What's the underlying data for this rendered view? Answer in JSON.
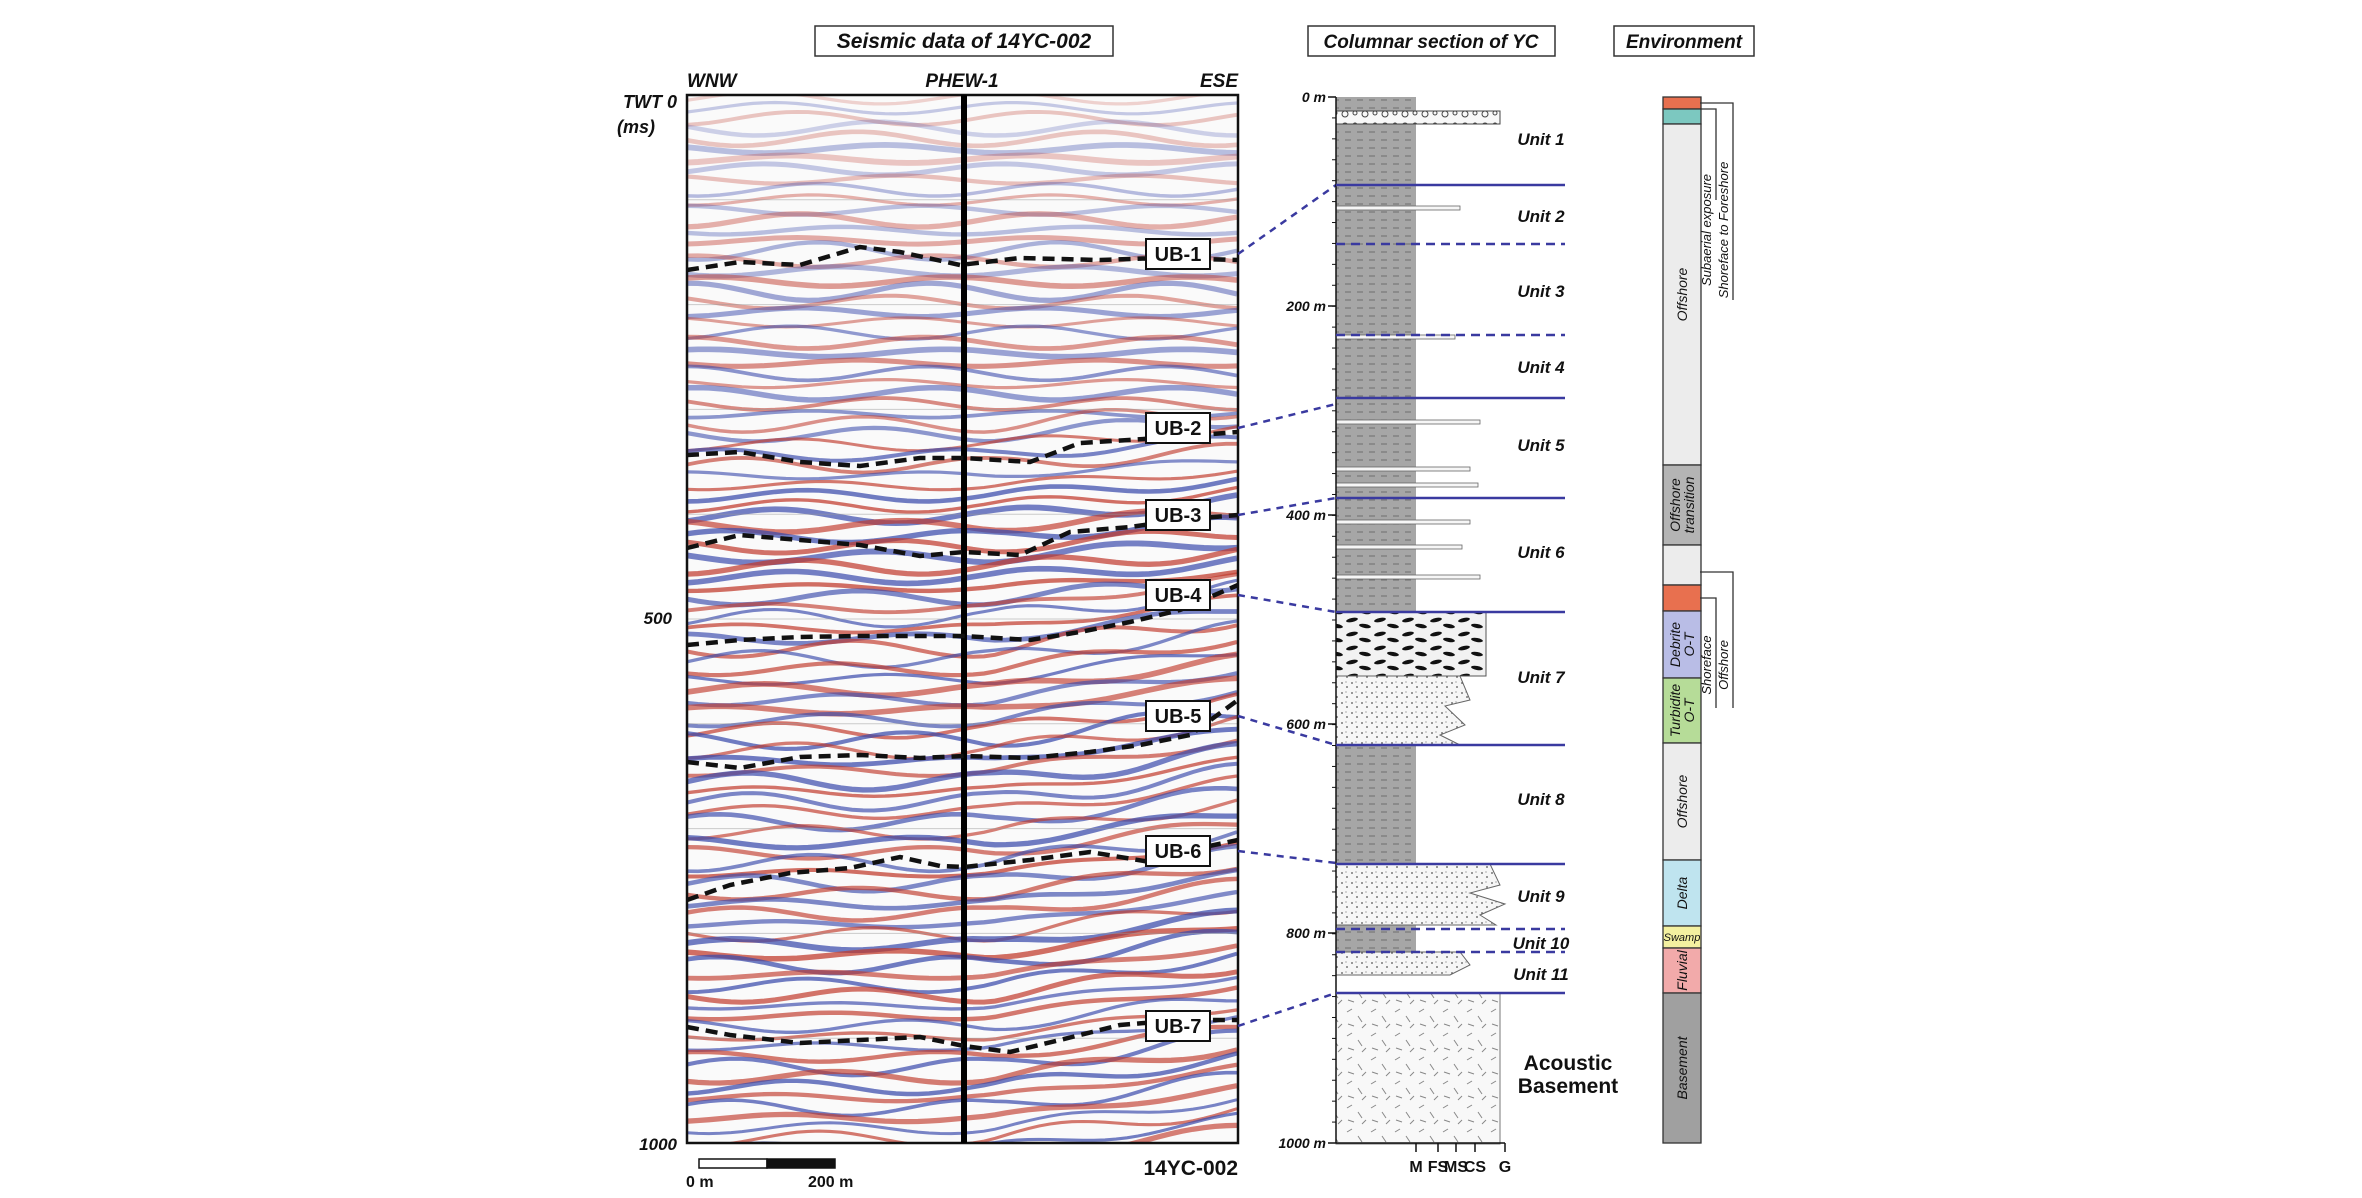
{
  "seismic": {
    "title": "Seismic data of 14YC-002",
    "label_west": "WNW",
    "label_well": "PHEW-1",
    "label_east": "ESE",
    "axis_title": "TWT 0",
    "axis_unit": "(ms)",
    "axis_tick_500": "500",
    "axis_tick_1000": "1000",
    "line_name": "14YC-002",
    "scale_start": "0 m",
    "scale_end": "200 m",
    "boundaries": [
      "UB-1",
      "UB-2",
      "UB-3",
      "UB-4",
      "UB-5",
      "UB-6",
      "UB-7"
    ]
  },
  "column": {
    "title": "Columnar section of YC",
    "depth_labels": [
      "0 m",
      "200 m",
      "400 m",
      "600 m",
      "800 m",
      "1000 m"
    ],
    "units": [
      "Unit 1",
      "Unit 2",
      "Unit 3",
      "Unit 4",
      "Unit 5",
      "Unit 6",
      "Unit 7",
      "Unit 8",
      "Unit 9",
      "Unit 10",
      "Unit 11"
    ],
    "basement_line1": "Acoustic",
    "basement_line2": "Basement",
    "grain_labels": [
      "M",
      "FS",
      "MS",
      "CS",
      "G"
    ]
  },
  "environment": {
    "title": "Environment",
    "zones": [
      {
        "label": "Offshore"
      },
      {
        "label": "Offshore"
      },
      {
        "label": "transition"
      },
      {
        "label": "Debrite"
      },
      {
        "label": "O-T"
      },
      {
        "label": "Turbidite"
      },
      {
        "label": "O-T"
      },
      {
        "label": "Offshore"
      },
      {
        "label": "Delta"
      },
      {
        "label": "Swamp"
      },
      {
        "label": "Fluvial"
      },
      {
        "label": "Basement"
      }
    ],
    "annotations": [
      "Subaerial exposure",
      "Shoreface to Foreshore",
      "Shoreface",
      "Offshore"
    ]
  },
  "colors": {
    "accent": "#3a3aa0",
    "seismic_red": "#c0392b",
    "seismic_blue": "#3949ab",
    "subaerial": "#e8704f",
    "shoreface": "#7cc8c0",
    "offshore": "#ececec",
    "transition": "#b4b4b4",
    "debrite": "#b9bde6",
    "turbidite": "#b6dc98",
    "delta": "#bfe4ef",
    "swamp": "#f3f0a0",
    "fluvial": "#f2aaaa",
    "basement": "#a0a0a0"
  }
}
